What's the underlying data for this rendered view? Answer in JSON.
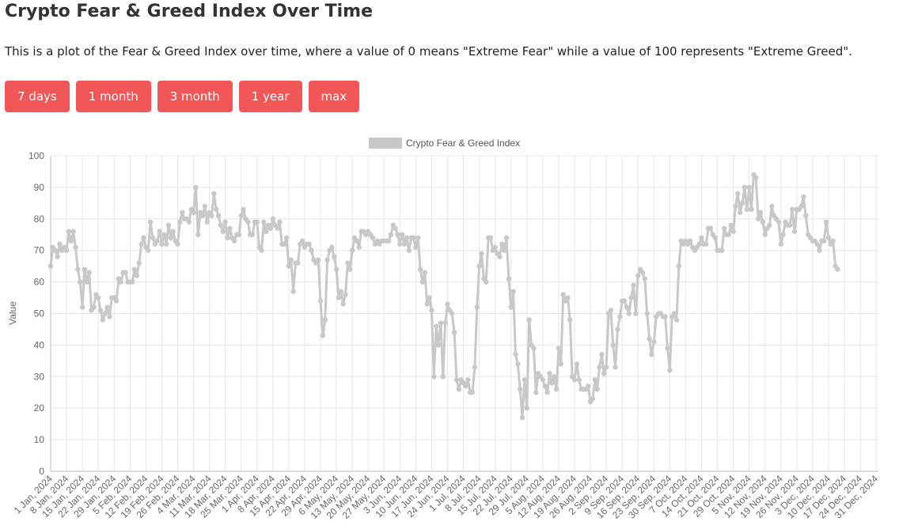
{
  "page": {
    "title": "Crypto Fear & Greed Index Over Time",
    "description": "This is a plot of the Fear & Greed Index over time, where a value of 0 means \"Extreme Fear\" while a value of 100 represents \"Extreme Greed\".",
    "buttons": [
      "7 days",
      "1 month",
      "3 month",
      "1 year",
      "max"
    ]
  },
  "colors": {
    "button": "#f25757",
    "line": "#c8c8c8",
    "grid": "#e6e6e6"
  },
  "chart_data": {
    "type": "line",
    "ylabel": "Value",
    "ylim": [
      0,
      100
    ],
    "yticks": [
      0,
      10,
      20,
      30,
      40,
      50,
      60,
      70,
      80,
      90,
      100
    ],
    "grid": true,
    "legend_position": "top-center",
    "series": [
      {
        "name": "Crypto Fear & Greed Index"
      }
    ],
    "x_start": "2024-01-01",
    "x_end": "2024-12-31",
    "xticks": [
      "1 Jan, 2024",
      "8 Jan, 2024",
      "15 Jan, 2024",
      "22 Jan, 2024",
      "29 Jan, 2024",
      "5 Feb, 2024",
      "12 Feb, 2024",
      "19 Feb, 2024",
      "26 Feb, 2024",
      "4 Mar, 2024",
      "11 Mar, 2024",
      "18 Mar, 2024",
      "25 Mar, 2024",
      "1 Apr, 2024",
      "8 Apr, 2024",
      "15 Apr, 2024",
      "22 Apr, 2024",
      "29 Apr, 2024",
      "6 May, 2024",
      "13 May, 2024",
      "20 May, 2024",
      "27 May, 2024",
      "3 Jun, 2024",
      "10 Jun, 2024",
      "17 Jun, 2024",
      "24 Jun, 2024",
      "1 Jul, 2024",
      "8 Jul, 2024",
      "15 Jul, 2024",
      "22 Jul, 2024",
      "29 Jul, 2024",
      "5 Aug, 2024",
      "12 Aug, 2024",
      "19 Aug, 2024",
      "26 Aug, 2024",
      "2 Sep, 2024",
      "9 Sep, 2024",
      "16 Sep, 2024",
      "23 Sep, 2024",
      "30 Sep, 2024",
      "7 Oct, 2024",
      "14 Oct, 2024",
      "21 Oct, 2024",
      "29 Oct, 2024",
      "5 Nov, 2024",
      "12 Nov, 2024",
      "19 Nov, 2024",
      "26 Nov, 2024",
      "3 Dec, 2024",
      "10 Dec, 2024",
      "17 Dec, 2024",
      "24 Dec, 2024",
      "31 Dec, 2024"
    ],
    "weekly_values": [
      [
        65,
        71,
        70,
        68,
        72,
        70,
        71
      ],
      [
        70,
        76,
        73,
        76,
        71,
        64,
        60
      ],
      [
        52,
        64,
        60,
        63,
        51,
        52,
        56
      ],
      [
        55,
        51,
        48,
        50,
        52,
        49,
        55
      ],
      [
        55,
        54,
        61,
        60,
        63,
        63,
        60
      ],
      [
        60,
        60,
        64,
        62,
        66,
        72,
        74
      ],
      [
        71,
        70,
        79,
        74,
        72,
        73,
        76
      ],
      [
        72,
        75,
        72,
        78,
        74,
        76,
        73
      ],
      [
        72,
        79,
        82,
        80,
        80,
        79,
        83
      ],
      [
        82,
        90,
        75,
        82,
        81,
        84,
        79
      ],
      [
        82,
        81,
        88,
        83,
        81,
        78,
        76
      ],
      [
        79,
        74,
        77,
        74,
        73,
        75,
        75
      ],
      [
        81,
        83,
        80,
        79,
        75,
        75,
        79
      ],
      [
        79,
        71,
        70,
        79,
        76,
        78,
        77
      ],
      [
        80,
        78,
        77,
        79,
        72,
        72,
        74
      ],
      [
        65,
        67,
        57,
        66,
        66,
        72,
        73
      ],
      [
        71,
        72,
        72,
        70,
        67,
        66,
        67
      ],
      [
        54,
        43,
        48,
        67,
        70,
        71,
        68
      ],
      [
        64,
        55,
        57,
        53,
        56,
        66,
        64
      ],
      [
        70,
        74,
        73,
        71,
        76,
        76,
        75
      ],
      [
        76,
        75,
        74,
        72,
        73,
        72,
        73
      ],
      [
        73,
        73,
        73,
        75,
        78,
        77,
        75
      ],
      [
        72,
        75,
        72,
        74,
        70,
        74,
        74
      ],
      [
        71,
        74,
        64,
        60,
        63,
        53,
        55
      ],
      [
        51,
        30,
        46,
        40,
        47,
        30,
        47
      ],
      [
        53,
        51,
        50,
        44,
        29,
        26,
        29
      ],
      [
        28,
        27,
        29,
        25,
        25,
        33,
        52
      ],
      [
        65,
        69,
        61,
        60,
        74,
        74,
        70
      ],
      [
        71,
        69,
        68,
        72,
        70,
        74,
        61
      ],
      [
        52,
        57,
        37,
        34,
        26,
        17,
        29
      ],
      [
        20,
        48,
        40,
        39,
        25,
        31,
        30
      ],
      [
        29,
        27,
        25,
        31,
        28,
        30,
        26
      ],
      [
        39,
        34,
        56,
        54,
        55,
        48,
        30
      ],
      [
        29,
        34,
        29,
        26,
        26,
        26,
        27
      ],
      [
        22,
        23,
        29,
        26,
        33,
        37,
        31
      ],
      [
        33,
        50,
        51,
        40,
        33,
        45,
        49
      ],
      [
        54,
        54,
        52,
        50,
        55,
        59,
        50
      ],
      [
        62,
        64,
        63,
        61,
        50,
        42,
        37
      ],
      [
        41,
        49,
        50,
        50,
        49,
        49,
        39
      ],
      [
        32,
        49,
        50,
        48,
        65,
        73,
        72
      ],
      [
        73,
        72,
        73,
        71,
        70,
        71,
        72
      ],
      [
        74,
        72,
        72,
        77,
        77,
        75,
        74
      ],
      [
        70,
        70,
        70,
        77,
        75,
        75,
        78
      ],
      [
        76,
        84,
        88,
        82,
        85,
        90,
        83
      ],
      [
        90,
        83,
        94,
        93,
        80,
        82,
        79
      ],
      [
        75,
        77,
        78,
        84,
        81,
        80,
        79
      ],
      [
        72,
        75,
        79,
        78,
        78,
        83,
        76
      ],
      [
        83,
        83,
        84,
        87,
        81,
        75,
        74
      ],
      [
        73,
        73,
        72,
        70,
        73,
        73,
        79
      ],
      [
        74,
        72,
        73,
        65,
        64
      ]
    ]
  }
}
